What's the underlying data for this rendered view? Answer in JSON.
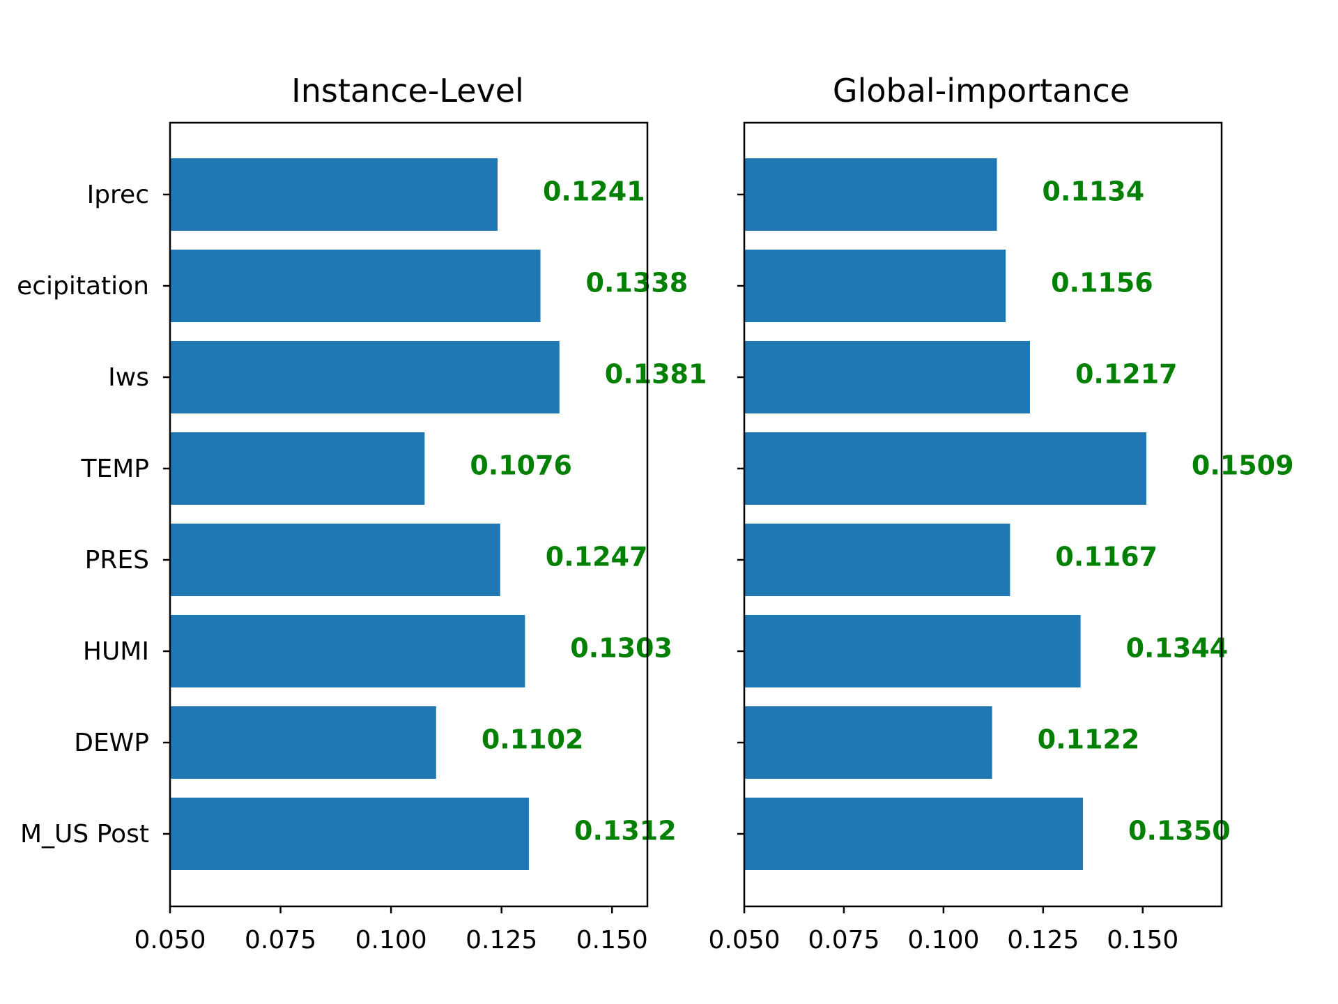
{
  "chart_data": [
    {
      "type": "bar",
      "orientation": "horizontal",
      "title": "Instance-Level",
      "categories": [
        "Iprec",
        "Precipitation",
        "Iws",
        "TEMP",
        "PRES",
        "HUMI",
        "DEWP",
        "PM_US Post"
      ],
      "category_labels": [
        "Iprec",
        "ecipitation",
        "Iws",
        "TEMP",
        "PRES",
        "HUMI",
        "DEWP",
        "M_US Post"
      ],
      "values": [
        0.1241,
        0.1338,
        0.1381,
        0.1076,
        0.1247,
        0.1303,
        0.1102,
        0.1312
      ],
      "data_labels": [
        "0.1241",
        "0.1338",
        "0.1381",
        "0.1076",
        "0.1247",
        "0.1303",
        "0.1102",
        "0.1312"
      ],
      "xlim": [
        0.05,
        0.158
      ],
      "xticks": [
        0.05,
        0.075,
        0.1,
        0.125,
        0.15
      ],
      "xtick_labels": [
        "0.050",
        "0.075",
        "0.100",
        "0.125",
        "0.150"
      ],
      "show_category_labels": true,
      "xlabel": "",
      "ylabel": "",
      "grid": false,
      "bar_color": "#1f77b4",
      "label_color": "#008000"
    },
    {
      "type": "bar",
      "orientation": "horizontal",
      "title": "Global-importance",
      "categories": [
        "Iprec",
        "Precipitation",
        "Iws",
        "TEMP",
        "PRES",
        "HUMI",
        "DEWP",
        "PM_US Post"
      ],
      "values": [
        0.1134,
        0.1156,
        0.1217,
        0.1509,
        0.1167,
        0.1344,
        0.1122,
        0.135
      ],
      "data_labels": [
        "0.1134",
        "0.1156",
        "0.1217",
        "0.1509",
        "0.1167",
        "0.1344",
        "0.1122",
        "0.1350"
      ],
      "xlim": [
        0.05,
        0.1698
      ],
      "xticks": [
        0.05,
        0.075,
        0.1,
        0.125,
        0.15
      ],
      "xtick_labels": [
        "0.050",
        "0.075",
        "0.100",
        "0.125",
        "0.150"
      ],
      "show_category_labels": false,
      "xlabel": "",
      "ylabel": "",
      "grid": false,
      "bar_color": "#1f77b4",
      "label_color": "#008000"
    }
  ]
}
